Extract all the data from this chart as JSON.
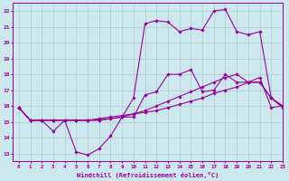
{
  "xlabel": "Windchill (Refroidissement éolien,°C)",
  "bg_color": "#cce8ee",
  "line_color": "#990099",
  "grid_color": "#aacccc",
  "ylim": [
    12.5,
    22.5
  ],
  "xlim": [
    -0.5,
    23
  ],
  "yticks": [
    13,
    14,
    15,
    16,
    17,
    18,
    19,
    20,
    21,
    22
  ],
  "xticks": [
    0,
    1,
    2,
    3,
    4,
    5,
    6,
    7,
    8,
    9,
    10,
    11,
    12,
    13,
    14,
    15,
    16,
    17,
    18,
    19,
    20,
    21,
    22,
    23
  ],
  "line1_x": [
    0,
    1,
    2,
    3,
    4,
    5,
    6,
    7,
    8,
    9,
    10,
    11,
    12,
    13,
    14,
    15,
    16,
    17,
    18,
    19,
    20,
    21,
    22,
    23
  ],
  "line1_y": [
    15.9,
    15.1,
    15.1,
    14.4,
    15.1,
    13.1,
    12.9,
    13.3,
    14.1,
    15.3,
    15.3,
    16.7,
    16.9,
    18.0,
    18.0,
    18.3,
    16.9,
    17.0,
    18.0,
    17.5,
    17.5,
    17.5,
    16.5,
    16.0
  ],
  "line2_x": [
    0,
    1,
    2,
    3,
    4,
    5,
    6,
    7,
    8,
    9,
    10,
    11,
    12,
    13,
    14,
    15,
    16,
    17,
    18,
    19,
    20,
    21,
    22,
    23
  ],
  "line2_y": [
    15.9,
    15.1,
    15.1,
    15.1,
    15.1,
    15.1,
    15.1,
    15.2,
    15.3,
    15.4,
    15.5,
    15.6,
    15.7,
    15.9,
    16.1,
    16.3,
    16.5,
    16.8,
    17.0,
    17.2,
    17.5,
    17.8,
    15.9,
    16.0
  ],
  "line3_x": [
    0,
    1,
    2,
    3,
    4,
    5,
    6,
    7,
    8,
    9,
    10,
    11,
    12,
    13,
    14,
    15,
    16,
    17,
    18,
    19,
    20,
    21,
    22,
    23
  ],
  "line3_y": [
    15.9,
    15.1,
    15.1,
    15.1,
    15.1,
    15.1,
    15.1,
    15.1,
    15.2,
    15.3,
    16.5,
    21.2,
    21.4,
    21.3,
    20.7,
    20.9,
    20.8,
    22.0,
    22.1,
    20.7,
    20.5,
    20.7,
    16.5,
    16.0
  ],
  "line4_x": [
    0,
    1,
    2,
    3,
    4,
    5,
    6,
    7,
    8,
    9,
    10,
    11,
    12,
    13,
    14,
    15,
    16,
    17,
    18,
    19,
    20,
    21,
    22,
    23
  ],
  "line4_y": [
    15.9,
    15.1,
    15.1,
    15.1,
    15.1,
    15.1,
    15.1,
    15.1,
    15.2,
    15.3,
    15.5,
    15.7,
    16.0,
    16.3,
    16.6,
    16.9,
    17.2,
    17.5,
    17.8,
    18.0,
    17.5,
    17.5,
    16.5,
    15.9
  ]
}
